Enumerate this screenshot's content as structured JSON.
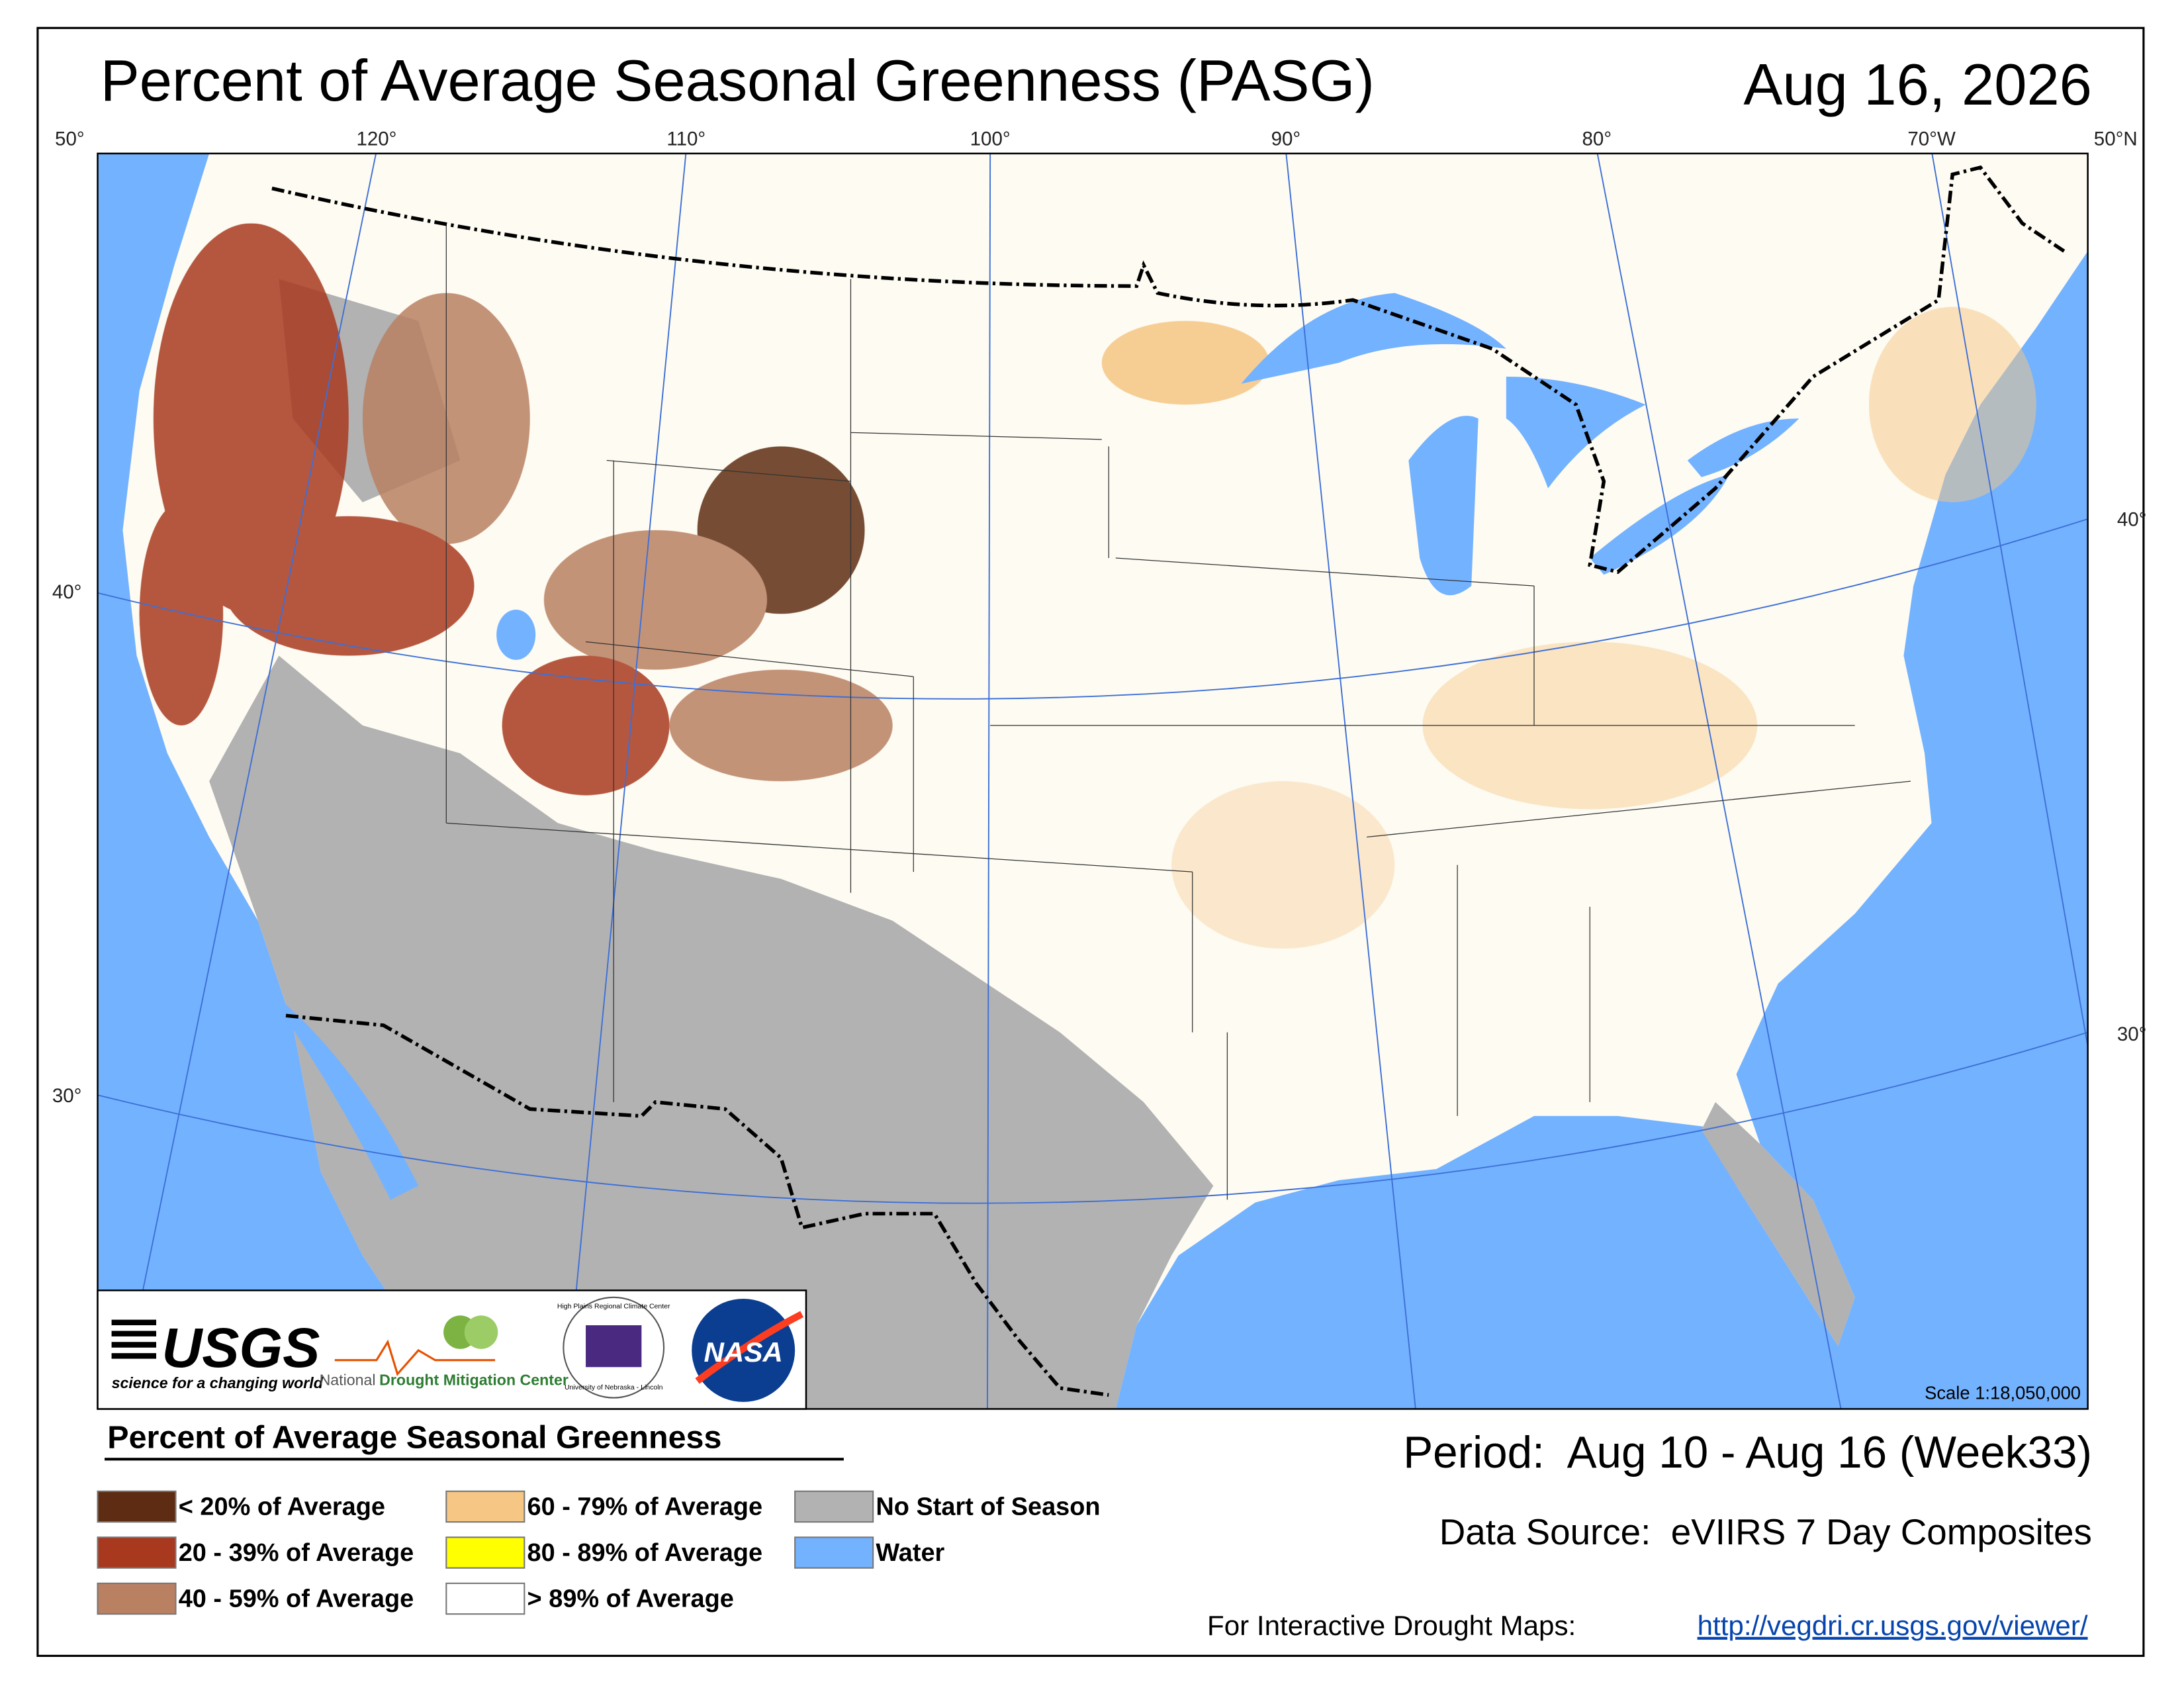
{
  "header": {
    "title": "Percent of Average Seasonal Greenness (PASG)",
    "date": "Aug 16, 2026"
  },
  "map": {
    "lon_labels": [
      "50°",
      "120°",
      "110°",
      "100°",
      "90°",
      "80°",
      "70°W",
      "50°N"
    ],
    "lat_labels_left": [
      "40°",
      "30°"
    ],
    "lat_labels_right": [
      "40°",
      "30°"
    ],
    "scale": "Scale 1:18,050,000"
  },
  "logos": {
    "usgs": "USGS",
    "usgs_tagline": "science for a changing world",
    "ndmc_prefix": "National",
    "ndmc": "Drought Mitigation Center",
    "hprcc": "High Plains Regional Climate Center",
    "hprcc_sub": "University of Nebraska - Lincoln",
    "nasa": "NASA"
  },
  "legend": {
    "title": "Percent of Average Seasonal Greenness",
    "items": [
      {
        "label": "< 20% of Average",
        "color": "#5e2c12"
      },
      {
        "label": "20 - 39% of Average",
        "color": "#a8391f"
      },
      {
        "label": "40 - 59% of Average",
        "color": "#b98062"
      },
      {
        "label": "60 - 79% of Average",
        "color": "#f5c684"
      },
      {
        "label": "80 - 89% of Average",
        "color": "#ffff00"
      },
      {
        "label": "> 89% of Average",
        "color": "#ffffff"
      },
      {
        "label": "No Start of Season",
        "color": "#b2b2b2"
      },
      {
        "label": "Water",
        "color": "#73b2ff"
      }
    ]
  },
  "footer": {
    "period": "Period:  Aug 10 - Aug 16 (Week33)",
    "data_source": "Data Source:  eVIIRS 7 Day Composites",
    "interactive_label": "For Interactive Drought Maps:",
    "link": "http://vegdri.cr.usgs.gov/viewer/"
  }
}
